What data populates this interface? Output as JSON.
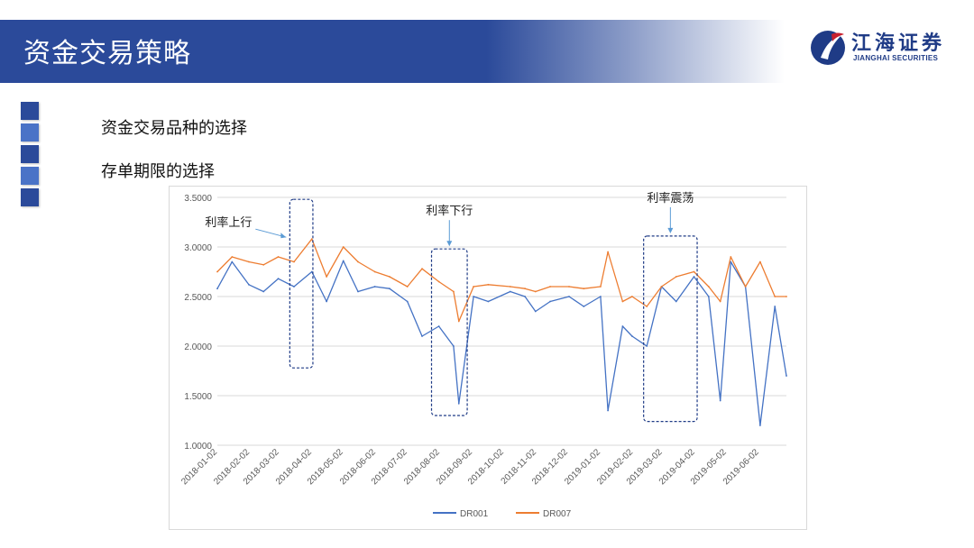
{
  "header": {
    "title": "资金交易策略"
  },
  "logo": {
    "cn": "江海证券",
    "en": "JIANGHAI SECURITIES",
    "colors": {
      "primary": "#1f3b86",
      "accent": "#c8202f"
    }
  },
  "bullets": [
    {
      "label": "资金交易品种的选择"
    },
    {
      "label": "存单期限的选择"
    }
  ],
  "colors": {
    "title_bar": "#2b4a9a",
    "square_dark": "#2b4a9a",
    "square_light": "#4a73c7",
    "dr001": "#4472c4",
    "dr007": "#ed7d31"
  },
  "chart_data": {
    "type": "line",
    "title": "",
    "xlabel": "",
    "ylabel": "",
    "ylim": [
      1.0,
      3.5
    ],
    "yticks": [
      "1.0000",
      "1.5000",
      "2.0000",
      "2.5000",
      "3.0000",
      "3.5000"
    ],
    "xticks": [
      "2018-01-02",
      "2018-02-02",
      "2018-03-02",
      "2018-04-02",
      "2018-05-02",
      "2018-06-02",
      "2018-07-02",
      "2018-08-02",
      "2018-09-02",
      "2018-10-02",
      "2018-11-02",
      "2018-12-02",
      "2019-01-02",
      "2019-02-02",
      "2019-03-02",
      "2019-04-02",
      "2019-05-02",
      "2019-06-02"
    ],
    "grid": true,
    "legend": "bottom",
    "series": [
      {
        "name": "DR001",
        "color": "#4472c4",
        "x": [
          "2018-01-02",
          "2018-01-16",
          "2018-02-01",
          "2018-02-15",
          "2018-03-01",
          "2018-03-16",
          "2018-04-02",
          "2018-04-16",
          "2018-05-02",
          "2018-05-16",
          "2018-06-01",
          "2018-06-15",
          "2018-07-02",
          "2018-07-16",
          "2018-08-01",
          "2018-08-15",
          "2018-08-20",
          "2018-09-03",
          "2018-09-17",
          "2018-10-08",
          "2018-10-22",
          "2018-11-01",
          "2018-11-15",
          "2018-12-03",
          "2018-12-17",
          "2019-01-02",
          "2019-01-09",
          "2019-01-23",
          "2019-02-01",
          "2019-02-15",
          "2019-03-01",
          "2019-03-15",
          "2019-04-01",
          "2019-04-15",
          "2019-04-26",
          "2019-05-06",
          "2019-05-20",
          "2019-06-03",
          "2019-06-17",
          "2019-06-28"
        ],
        "values": [
          2.58,
          2.85,
          2.62,
          2.55,
          2.68,
          2.6,
          2.75,
          2.45,
          2.86,
          2.55,
          2.6,
          2.58,
          2.45,
          2.1,
          2.2,
          2.0,
          1.42,
          2.5,
          2.45,
          2.55,
          2.5,
          2.35,
          2.45,
          2.5,
          2.4,
          2.5,
          1.35,
          2.2,
          2.1,
          2.0,
          2.6,
          2.45,
          2.7,
          2.5,
          1.45,
          2.85,
          2.6,
          1.2,
          2.4,
          1.7
        ]
      },
      {
        "name": "DR007",
        "color": "#ed7d31",
        "x": [
          "2018-01-02",
          "2018-01-16",
          "2018-02-01",
          "2018-02-15",
          "2018-03-01",
          "2018-03-16",
          "2018-04-02",
          "2018-04-16",
          "2018-05-02",
          "2018-05-16",
          "2018-06-01",
          "2018-06-15",
          "2018-07-02",
          "2018-07-16",
          "2018-08-01",
          "2018-08-15",
          "2018-08-20",
          "2018-09-03",
          "2018-09-17",
          "2018-10-08",
          "2018-10-22",
          "2018-11-01",
          "2018-11-15",
          "2018-12-03",
          "2018-12-17",
          "2019-01-02",
          "2019-01-09",
          "2019-01-23",
          "2019-02-01",
          "2019-02-15",
          "2019-03-01",
          "2019-03-15",
          "2019-04-01",
          "2019-04-15",
          "2019-04-26",
          "2019-05-06",
          "2019-05-20",
          "2019-06-03",
          "2019-06-17",
          "2019-06-28"
        ],
        "values": [
          2.75,
          2.9,
          2.85,
          2.82,
          2.9,
          2.85,
          3.08,
          2.7,
          3.0,
          2.85,
          2.75,
          2.7,
          2.6,
          2.78,
          2.65,
          2.55,
          2.25,
          2.6,
          2.62,
          2.6,
          2.58,
          2.55,
          2.6,
          2.6,
          2.58,
          2.6,
          2.95,
          2.45,
          2.5,
          2.4,
          2.6,
          2.7,
          2.75,
          2.6,
          2.45,
          2.9,
          2.6,
          2.85,
          2.5,
          2.5
        ]
      }
    ],
    "annotations": [
      {
        "text": "利率上行",
        "x_range": [
          "2018-03-12",
          "2018-04-03"
        ],
        "y_range": [
          1.78,
          3.48
        ]
      },
      {
        "text": "利率下行",
        "x_range": [
          "2018-07-25",
          "2018-08-28"
        ],
        "y_range": [
          1.3,
          2.98
        ]
      },
      {
        "text": "利率震荡",
        "x_range": [
          "2019-02-12",
          "2019-04-04"
        ],
        "y_range": [
          1.24,
          3.11
        ]
      }
    ]
  }
}
